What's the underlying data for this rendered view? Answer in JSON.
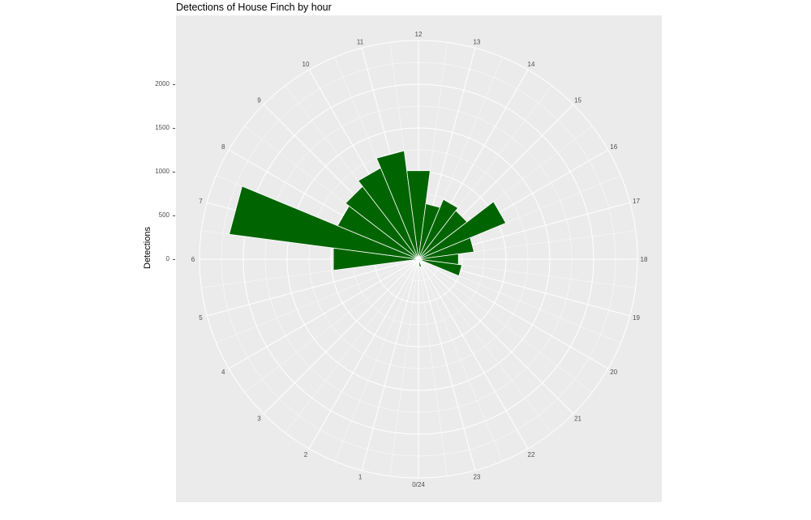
{
  "chart_data": {
    "type": "bar",
    "coord": "polar",
    "title": "Detections of House Finch by hour",
    "ylabel": "Detections",
    "xlabel": "",
    "categories": [
      "0",
      "1",
      "2",
      "3",
      "4",
      "5",
      "6",
      "7",
      "8",
      "9",
      "10",
      "11",
      "12",
      "13",
      "14",
      "15",
      "16",
      "17",
      "18",
      "19",
      "20",
      "21",
      "22",
      "23"
    ],
    "tick_labels": [
      "0/24",
      "1",
      "2",
      "3",
      "4",
      "5",
      "6",
      "7",
      "8",
      "9",
      "10",
      "11",
      "12",
      "13",
      "14",
      "15",
      "16",
      "17",
      "18",
      "19",
      "20",
      "21",
      "22",
      "23"
    ],
    "values": [
      0,
      0,
      0,
      0,
      0,
      0,
      980,
      2180,
      1000,
      1050,
      1130,
      1250,
      1020,
      640,
      740,
      700,
      1080,
      640,
      460,
      500,
      0,
      0,
      0,
      90
    ],
    "ylim": [
      0,
      2500
    ],
    "y_ticks": [
      "0",
      "500",
      "1000",
      "1500",
      "2000"
    ],
    "y_tick_values": [
      0,
      500,
      1000,
      1500,
      2000
    ],
    "bar_color": "#006400",
    "grid": true
  }
}
